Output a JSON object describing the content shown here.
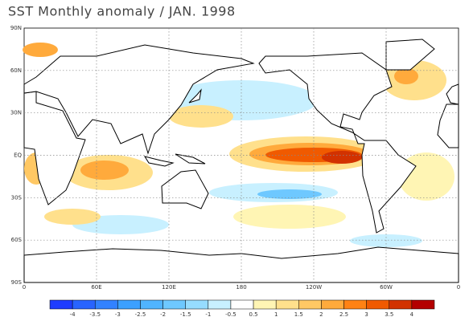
{
  "title": "SST Monthly anomaly / JAN. 1998",
  "lat_labels": [
    "90N",
    "60N",
    "30N",
    "EQ",
    "30S",
    "60S",
    "90S"
  ],
  "lon_labels": [
    "0",
    "60E",
    "120E",
    "180",
    "120W",
    "60W",
    "0"
  ],
  "colorbar": {
    "labels": [
      -4,
      -3.5,
      -3,
      -2.5,
      -2,
      -1.5,
      -1,
      -0.5,
      0.5,
      1,
      1.5,
      2,
      2.5,
      3,
      3.5,
      4
    ],
    "colors": [
      "#1e3cff",
      "#2864ff",
      "#3282ff",
      "#3ca0ff",
      "#50b4ff",
      "#6ec8ff",
      "#96dcff",
      "#c8f0ff",
      "#ffffff",
      "#fff5b4",
      "#ffe08c",
      "#ffc864",
      "#ffaa3c",
      "#ff8214",
      "#f05a00",
      "#d23200",
      "#b40000"
    ]
  }
}
